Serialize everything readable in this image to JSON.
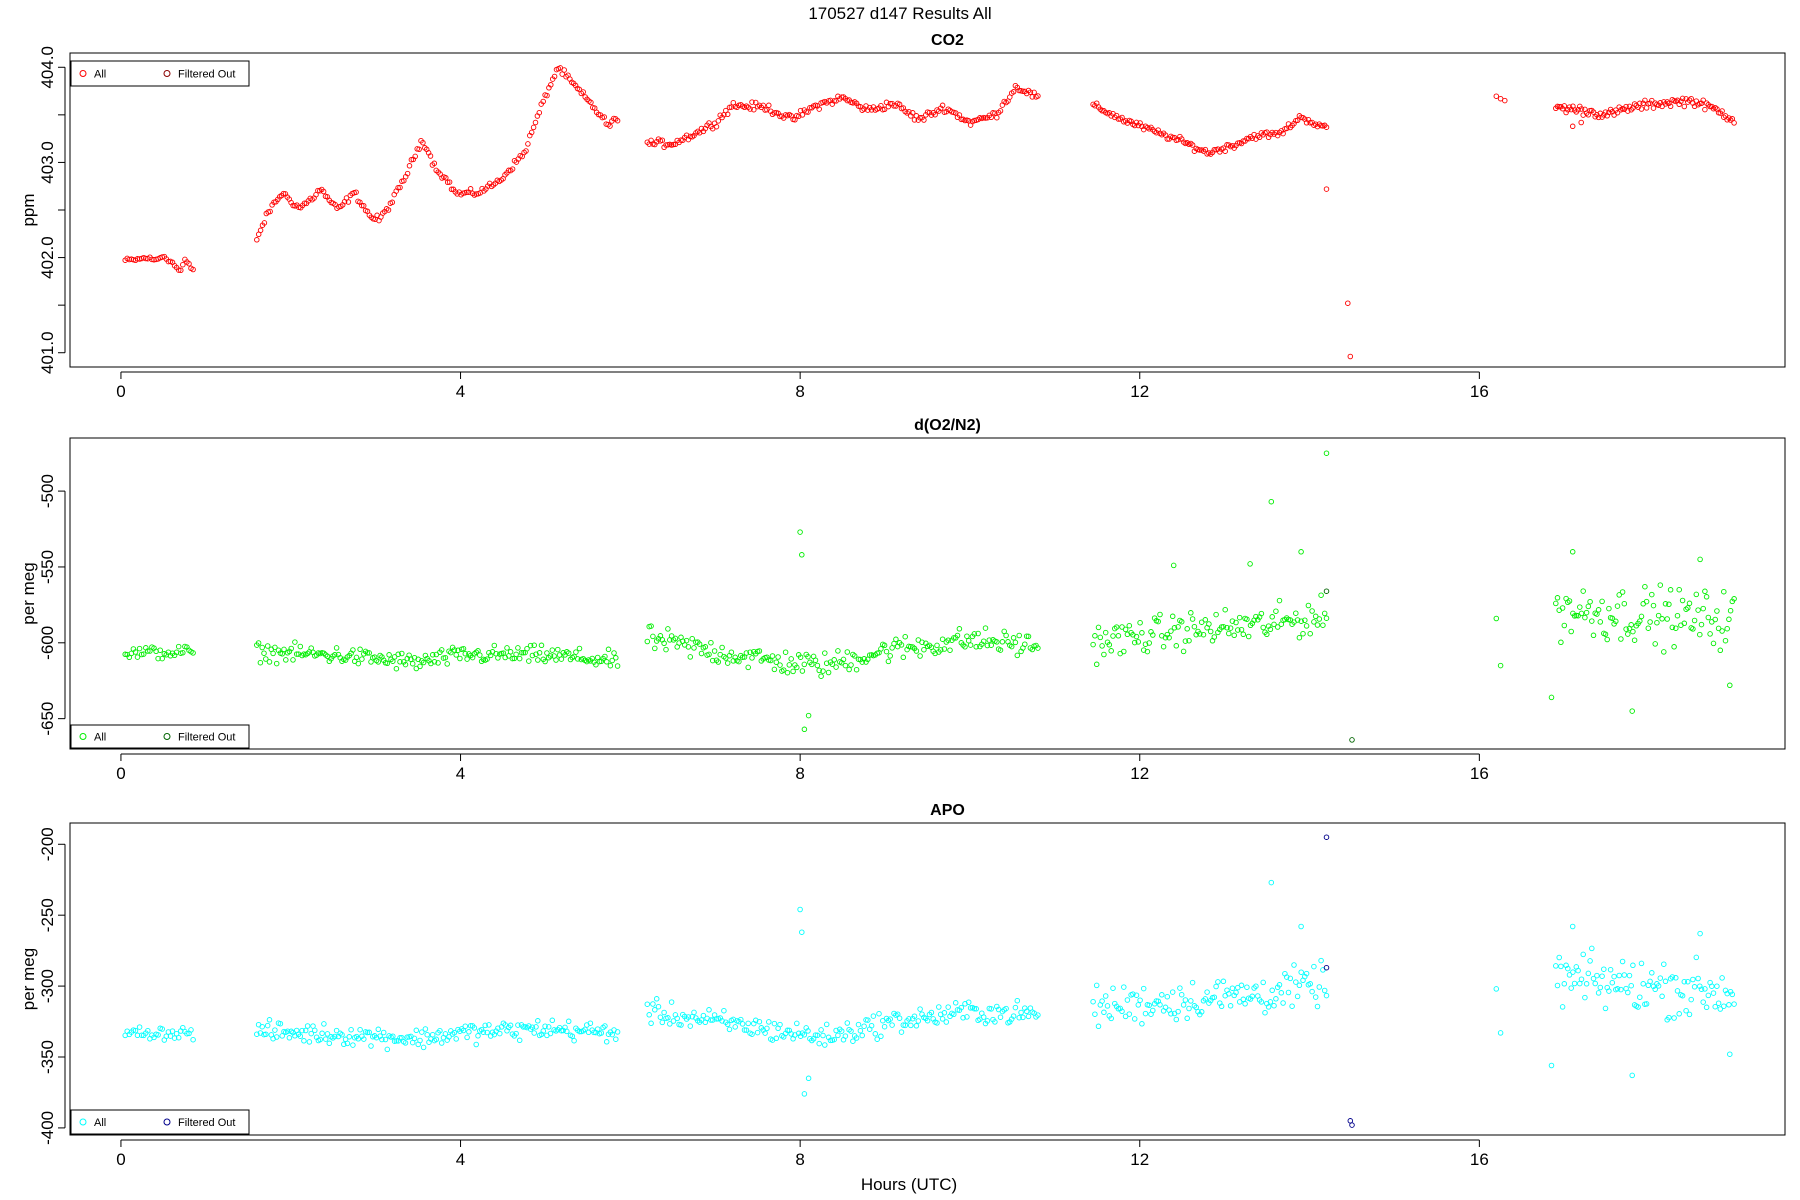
{
  "figure": {
    "title": "170527   d147   Results All",
    "xlabel": "Hours (UTC)"
  },
  "chart_data": [
    {
      "type": "scatter",
      "title": "CO2",
      "xlabel": "Hours (UTC)",
      "ylabel": "ppm",
      "xlim": [
        -0.6,
        19.6
      ],
      "ylim": [
        400.85,
        404.15
      ],
      "x_ticks": [
        0,
        4,
        8,
        12,
        16
      ],
      "y_ticks": [
        401.0,
        402.0,
        403.0,
        404.0
      ],
      "y_tick_labels": [
        "401.0",
        "402.0",
        "403.0",
        "404.0"
      ],
      "y_minor_ticks": [
        401.5,
        402.5,
        403.5
      ],
      "legend": {
        "position": "top-left",
        "entries": [
          "All",
          "Filtered Out"
        ]
      },
      "series": [
        {
          "name": "All",
          "color": "#ff0000",
          "segments": [
            {
              "x0": 0.05,
              "x1": 0.85,
              "n": 34,
              "points": [
                [
                  0.05,
                  401.97
                ],
                [
                  0.2,
                  401.98
                ],
                [
                  0.3,
                  402.0
                ],
                [
                  0.4,
                  401.97
                ],
                [
                  0.5,
                  402.02
                ],
                [
                  0.6,
                  401.95
                ],
                [
                  0.7,
                  401.85
                ],
                [
                  0.75,
                  401.98
                ],
                [
                  0.85,
                  401.86
                ]
              ],
              "noise": 0.02
            },
            {
              "x0": 1.6,
              "x1": 5.85,
              "n": 190,
              "points": [
                [
                  1.6,
                  402.2
                ],
                [
                  1.75,
                  402.5
                ],
                [
                  1.9,
                  402.68
                ],
                [
                  2.1,
                  402.52
                ],
                [
                  2.25,
                  402.62
                ],
                [
                  2.35,
                  402.72
                ],
                [
                  2.55,
                  402.5
                ],
                [
                  2.75,
                  402.68
                ],
                [
                  2.95,
                  402.42
                ],
                [
                  3.05,
                  402.4
                ],
                [
                  3.2,
                  402.6
                ],
                [
                  3.35,
                  402.85
                ],
                [
                  3.55,
                  403.25
                ],
                [
                  3.7,
                  402.95
                ],
                [
                  3.85,
                  402.8
                ],
                [
                  3.95,
                  402.67
                ],
                [
                  4.2,
                  402.68
                ],
                [
                  4.45,
                  402.8
                ],
                [
                  4.75,
                  403.1
                ],
                [
                  5.0,
                  403.7
                ],
                [
                  5.15,
                  404.0
                ],
                [
                  5.35,
                  403.8
                ],
                [
                  5.55,
                  403.6
                ],
                [
                  5.75,
                  403.38
                ],
                [
                  5.85,
                  403.48
                ]
              ],
              "noise": 0.03
            },
            {
              "x0": 6.2,
              "x1": 10.8,
              "n": 210,
              "points": [
                [
                  6.2,
                  403.2
                ],
                [
                  6.5,
                  403.2
                ],
                [
                  6.8,
                  403.32
                ],
                [
                  7.0,
                  403.42
                ],
                [
                  7.2,
                  403.6
                ],
                [
                  7.6,
                  403.58
                ],
                [
                  7.9,
                  403.45
                ],
                [
                  8.2,
                  403.6
                ],
                [
                  8.5,
                  403.68
                ],
                [
                  8.8,
                  403.55
                ],
                [
                  9.1,
                  403.62
                ],
                [
                  9.4,
                  403.45
                ],
                [
                  9.7,
                  403.58
                ],
                [
                  10.0,
                  403.42
                ],
                [
                  10.3,
                  403.5
                ],
                [
                  10.55,
                  403.8
                ],
                [
                  10.8,
                  403.68
                ]
              ],
              "noise": 0.035
            },
            {
              "x0": 11.45,
              "x1": 14.2,
              "n": 130,
              "points": [
                [
                  11.45,
                  403.6
                ],
                [
                  11.8,
                  403.45
                ],
                [
                  12.1,
                  403.35
                ],
                [
                  12.5,
                  403.22
                ],
                [
                  12.8,
                  403.1
                ],
                [
                  13.1,
                  403.18
                ],
                [
                  13.35,
                  403.28
                ],
                [
                  13.65,
                  403.3
                ],
                [
                  13.9,
                  403.48
                ],
                [
                  14.2,
                  403.35
                ]
              ],
              "noise": 0.03
            },
            {
              "x0": 16.2,
              "x1": 16.3,
              "n": 3,
              "points": [
                [
                  16.2,
                  403.7
                ],
                [
                  16.3,
                  403.65
                ]
              ],
              "noise": 0.02
            },
            {
              "x0": 16.9,
              "x1": 19.0,
              "n": 105,
              "points": [
                [
                  16.9,
                  403.58
                ],
                [
                  17.2,
                  403.55
                ],
                [
                  17.5,
                  403.5
                ],
                [
                  17.8,
                  403.58
                ],
                [
                  18.1,
                  403.62
                ],
                [
                  18.5,
                  403.65
                ],
                [
                  18.8,
                  403.55
                ],
                [
                  19.0,
                  403.45
                ]
              ],
              "noise": 0.04
            }
          ],
          "extra_points": [
            [
              14.2,
              402.72
            ],
            [
              14.45,
              401.52
            ],
            [
              14.48,
              400.96
            ],
            [
              17.1,
              403.38
            ],
            [
              17.2,
              403.42
            ]
          ]
        },
        {
          "name": "Filtered Out",
          "color": "#8b0000",
          "points": []
        }
      ]
    },
    {
      "type": "scatter",
      "title": "d(O2/N2)",
      "xlabel": "Hours (UTC)",
      "ylabel": "per meg",
      "xlim": [
        -0.6,
        19.6
      ],
      "ylim": [
        -670,
        -465
      ],
      "x_ticks": [
        0,
        4,
        8,
        12,
        16
      ],
      "y_ticks": [
        -650,
        -600,
        -550,
        -500
      ],
      "y_tick_labels": [
        "-650",
        "-600",
        "-550",
        "-500"
      ],
      "legend": {
        "position": "bottom-left",
        "entries": [
          "All",
          "Filtered Out"
        ]
      },
      "series": [
        {
          "name": "All",
          "color": "#00ee00",
          "segments": [
            {
              "x0": 0.05,
              "x1": 0.85,
              "n": 34,
              "points": [
                [
                  0.05,
                  -607
                ],
                [
                  0.85,
                  -606
                ]
              ],
              "noise": 4
            },
            {
              "x0": 1.6,
              "x1": 5.85,
              "n": 200,
              "points": [
                [
                  1.6,
                  -606
                ],
                [
                  2.5,
                  -608
                ],
                [
                  3.5,
                  -613
                ],
                [
                  4.0,
                  -608
                ],
                [
                  5.0,
                  -608
                ],
                [
                  5.85,
                  -612
                ]
              ],
              "noise": 5
            },
            {
              "x0": 6.2,
              "x1": 10.8,
              "n": 210,
              "points": [
                [
                  6.2,
                  -597
                ],
                [
                  7.0,
                  -606
                ],
                [
                  7.8,
                  -613
                ],
                [
                  8.3,
                  -615
                ],
                [
                  9.0,
                  -605
                ],
                [
                  10.0,
                  -598
                ],
                [
                  10.8,
                  -602
                ]
              ],
              "noise": 7
            },
            {
              "x0": 11.45,
              "x1": 14.2,
              "n": 130,
              "points": [
                [
                  11.45,
                  -600
                ],
                [
                  12.5,
                  -592
                ],
                [
                  13.5,
                  -588
                ],
                [
                  14.2,
                  -582
                ]
              ],
              "noise": 10
            },
            {
              "x0": 16.9,
              "x1": 19.0,
              "n": 105,
              "points": [
                [
                  16.9,
                  -578
                ],
                [
                  18.0,
                  -582
                ],
                [
                  19.0,
                  -585
                ]
              ],
              "noise": 16
            }
          ],
          "extra_points": [
            [
              8.0,
              -527
            ],
            [
              8.02,
              -542
            ],
            [
              8.05,
              -657
            ],
            [
              8.1,
              -648
            ],
            [
              12.4,
              -549
            ],
            [
              13.3,
              -548
            ],
            [
              13.55,
              -507
            ],
            [
              13.9,
              -540
            ],
            [
              14.2,
              -475
            ],
            [
              16.2,
              -584
            ],
            [
              16.25,
              -615
            ],
            [
              16.85,
              -636
            ],
            [
              17.1,
              -540
            ],
            [
              17.8,
              -645
            ],
            [
              18.6,
              -545
            ],
            [
              18.95,
              -628
            ]
          ]
        },
        {
          "name": "Filtered Out",
          "color": "#006400",
          "points": [
            [
              14.2,
              -566
            ],
            [
              14.5,
              -664
            ]
          ]
        }
      ]
    },
    {
      "type": "scatter",
      "title": "APO",
      "xlabel": "Hours (UTC)",
      "ylabel": "per meg",
      "xlim": [
        -0.6,
        19.6
      ],
      "ylim": [
        -405,
        -185
      ],
      "x_ticks": [
        0,
        4,
        8,
        12,
        16
      ],
      "y_ticks": [
        -400,
        -350,
        -300,
        -250,
        -200
      ],
      "y_tick_labels": [
        "-400",
        "-350",
        "-300",
        "-250",
        "-200"
      ],
      "legend": {
        "position": "bottom-left",
        "entries": [
          "All",
          "Filtered Out"
        ]
      },
      "series": [
        {
          "name": "All",
          "color": "#00ffff",
          "segments": [
            {
              "x0": 0.05,
              "x1": 0.85,
              "n": 34,
              "points": [
                [
                  0.05,
                  -333
                ],
                [
                  0.85,
                  -333
                ]
              ],
              "noise": 4
            },
            {
              "x0": 1.6,
              "x1": 5.85,
              "n": 200,
              "points": [
                [
                  1.6,
                  -332
                ],
                [
                  2.5,
                  -334
                ],
                [
                  3.5,
                  -337
                ],
                [
                  4.0,
                  -333
                ],
                [
                  5.0,
                  -330
                ],
                [
                  5.85,
                  -333
                ]
              ],
              "noise": 6
            },
            {
              "x0": 6.2,
              "x1": 10.8,
              "n": 210,
              "points": [
                [
                  6.2,
                  -318
                ],
                [
                  7.0,
                  -325
                ],
                [
                  7.8,
                  -332
                ],
                [
                  8.3,
                  -336
                ],
                [
                  9.0,
                  -326
                ],
                [
                  10.0,
                  -318
                ],
                [
                  10.8,
                  -320
                ]
              ],
              "noise": 7
            },
            {
              "x0": 11.45,
              "x1": 14.2,
              "n": 130,
              "points": [
                [
                  11.45,
                  -315
                ],
                [
                  12.5,
                  -310
                ],
                [
                  13.5,
                  -305
                ],
                [
                  14.2,
                  -298
                ]
              ],
              "noise": 12
            },
            {
              "x0": 16.9,
              "x1": 19.0,
              "n": 105,
              "points": [
                [
                  16.9,
                  -295
                ],
                [
                  18.0,
                  -300
                ],
                [
                  19.0,
                  -305
                ]
              ],
              "noise": 17
            }
          ],
          "extra_points": [
            [
              8.0,
              -246
            ],
            [
              8.02,
              -262
            ],
            [
              8.05,
              -376
            ],
            [
              8.1,
              -365
            ],
            [
              13.55,
              -227
            ],
            [
              13.9,
              -258
            ],
            [
              16.2,
              -302
            ],
            [
              16.25,
              -333
            ],
            [
              16.85,
              -356
            ],
            [
              17.1,
              -258
            ],
            [
              17.8,
              -363
            ],
            [
              18.6,
              -263
            ],
            [
              18.95,
              -348
            ]
          ]
        },
        {
          "name": "Filtered Out",
          "color": "#00008b",
          "points": [
            [
              14.2,
              -195
            ],
            [
              14.2,
              -287
            ],
            [
              14.48,
              -395
            ],
            [
              14.5,
              -398
            ]
          ]
        }
      ]
    }
  ]
}
